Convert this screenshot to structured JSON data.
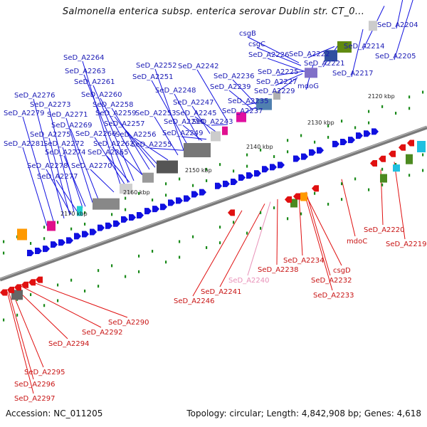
{
  "title": "Salmonella enterica subsp. enterica serovar Dublin str. CT_0...",
  "footer": {
    "accession": "Accession: NC_011205",
    "topology": "Topology: circular; Length: 4,842,908 bp; Genes: 4,618"
  },
  "colors": {
    "forward_gene": "#1010e0",
    "reverse_gene": "#e01010",
    "forward_label": "#1a1ab4",
    "reverse_label": "#c81414",
    "faded_label": "#e890b8",
    "backbone": "#7a7a7a",
    "tick": "#1a8a1a"
  },
  "scale_labels": [
    "2120 kbp",
    "2130 kbp",
    "2140 kbp",
    "2150 kbp",
    "2160 kbp",
    "2170 kbp"
  ],
  "forward_labels": [
    "SeD_A2204",
    "SeD_A2214",
    "SeD_A2205",
    "csgB",
    "csgC",
    "SeD_A2226",
    "SeD_A2222",
    "SeD_A2221",
    "SeD_A2225",
    "SeD_A2217",
    "SeD_A2227",
    "mdoG",
    "SeD_A2229",
    "SeD_A2264",
    "SeD_A2252",
    "SeD_A2242",
    "SeD_A2263",
    "SeD_A2251",
    "SeD_A2236",
    "SeD_A2261",
    "SeD_A2239",
    "SeD_A2248",
    "SeD_A2276",
    "SeD_A2260",
    "SeD_A2235",
    "SeD_A2273",
    "SeD_A2258",
    "SeD_A2247",
    "SeD_A2237",
    "SeD_A2279",
    "SeD_A2271",
    "SeD_A2259",
    "SeD_A2253",
    "SeD_A2245",
    "SeD_A2269",
    "SeD_A2257",
    "SeD_A2250",
    "SeD_A2243",
    "SeD_A2275",
    "SeD_A2266",
    "SeD_A2256",
    "SeD_A2249",
    "SeD_A2281",
    "SeD_A2272",
    "SeD_A2262",
    "SeD_A2255",
    "SeD_A2274",
    "SeD_A2265",
    "SeD_A2278",
    "SeD_A2270",
    "SeD_A2277"
  ],
  "reverse_labels": [
    "SeD_A2220",
    "mdoC",
    "SeD_A2219",
    "SeD_A2234",
    "csgD",
    "SeD_A2238",
    "SeD_A2232",
    "SeD_A2240",
    "SeD_A2233",
    "SeD_A2241",
    "SeD_A2246",
    "SeD_A2290",
    "SeD_A2292",
    "SeD_A2294",
    "SeD_A2295",
    "SeD_A2296",
    "SeD_A2297"
  ]
}
